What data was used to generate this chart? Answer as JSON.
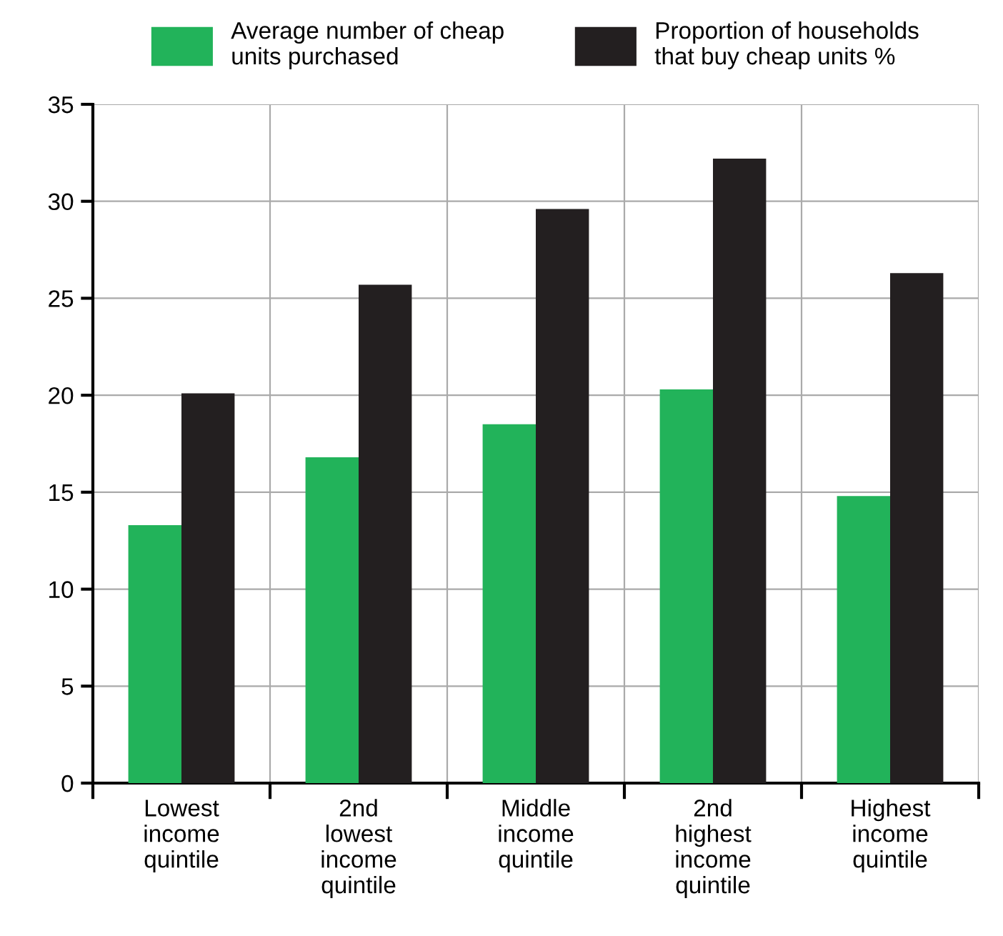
{
  "chart_data": {
    "type": "bar",
    "categories": [
      "Lowest\nincome\nquintile",
      "2nd\nlowest\nincome\nquintile",
      "Middle\nincome\nquintile",
      "2nd\nhighest\nincome\nquintile",
      "Highest\nincome\nquintile"
    ],
    "series": [
      {
        "name": "Average number of cheap\nunits purchased",
        "color": "#22b35a",
        "values": [
          13.3,
          16.8,
          18.5,
          20.3,
          14.8
        ]
      },
      {
        "name": "Proportion of households\nthat buy cheap units %",
        "color": "#231f20",
        "values": [
          20.1,
          25.7,
          29.6,
          32.2,
          26.3
        ]
      }
    ],
    "ylim": [
      0,
      35
    ],
    "yticks": [
      0,
      5,
      10,
      15,
      20,
      25,
      30,
      35
    ],
    "grid": true,
    "legend": "top"
  }
}
